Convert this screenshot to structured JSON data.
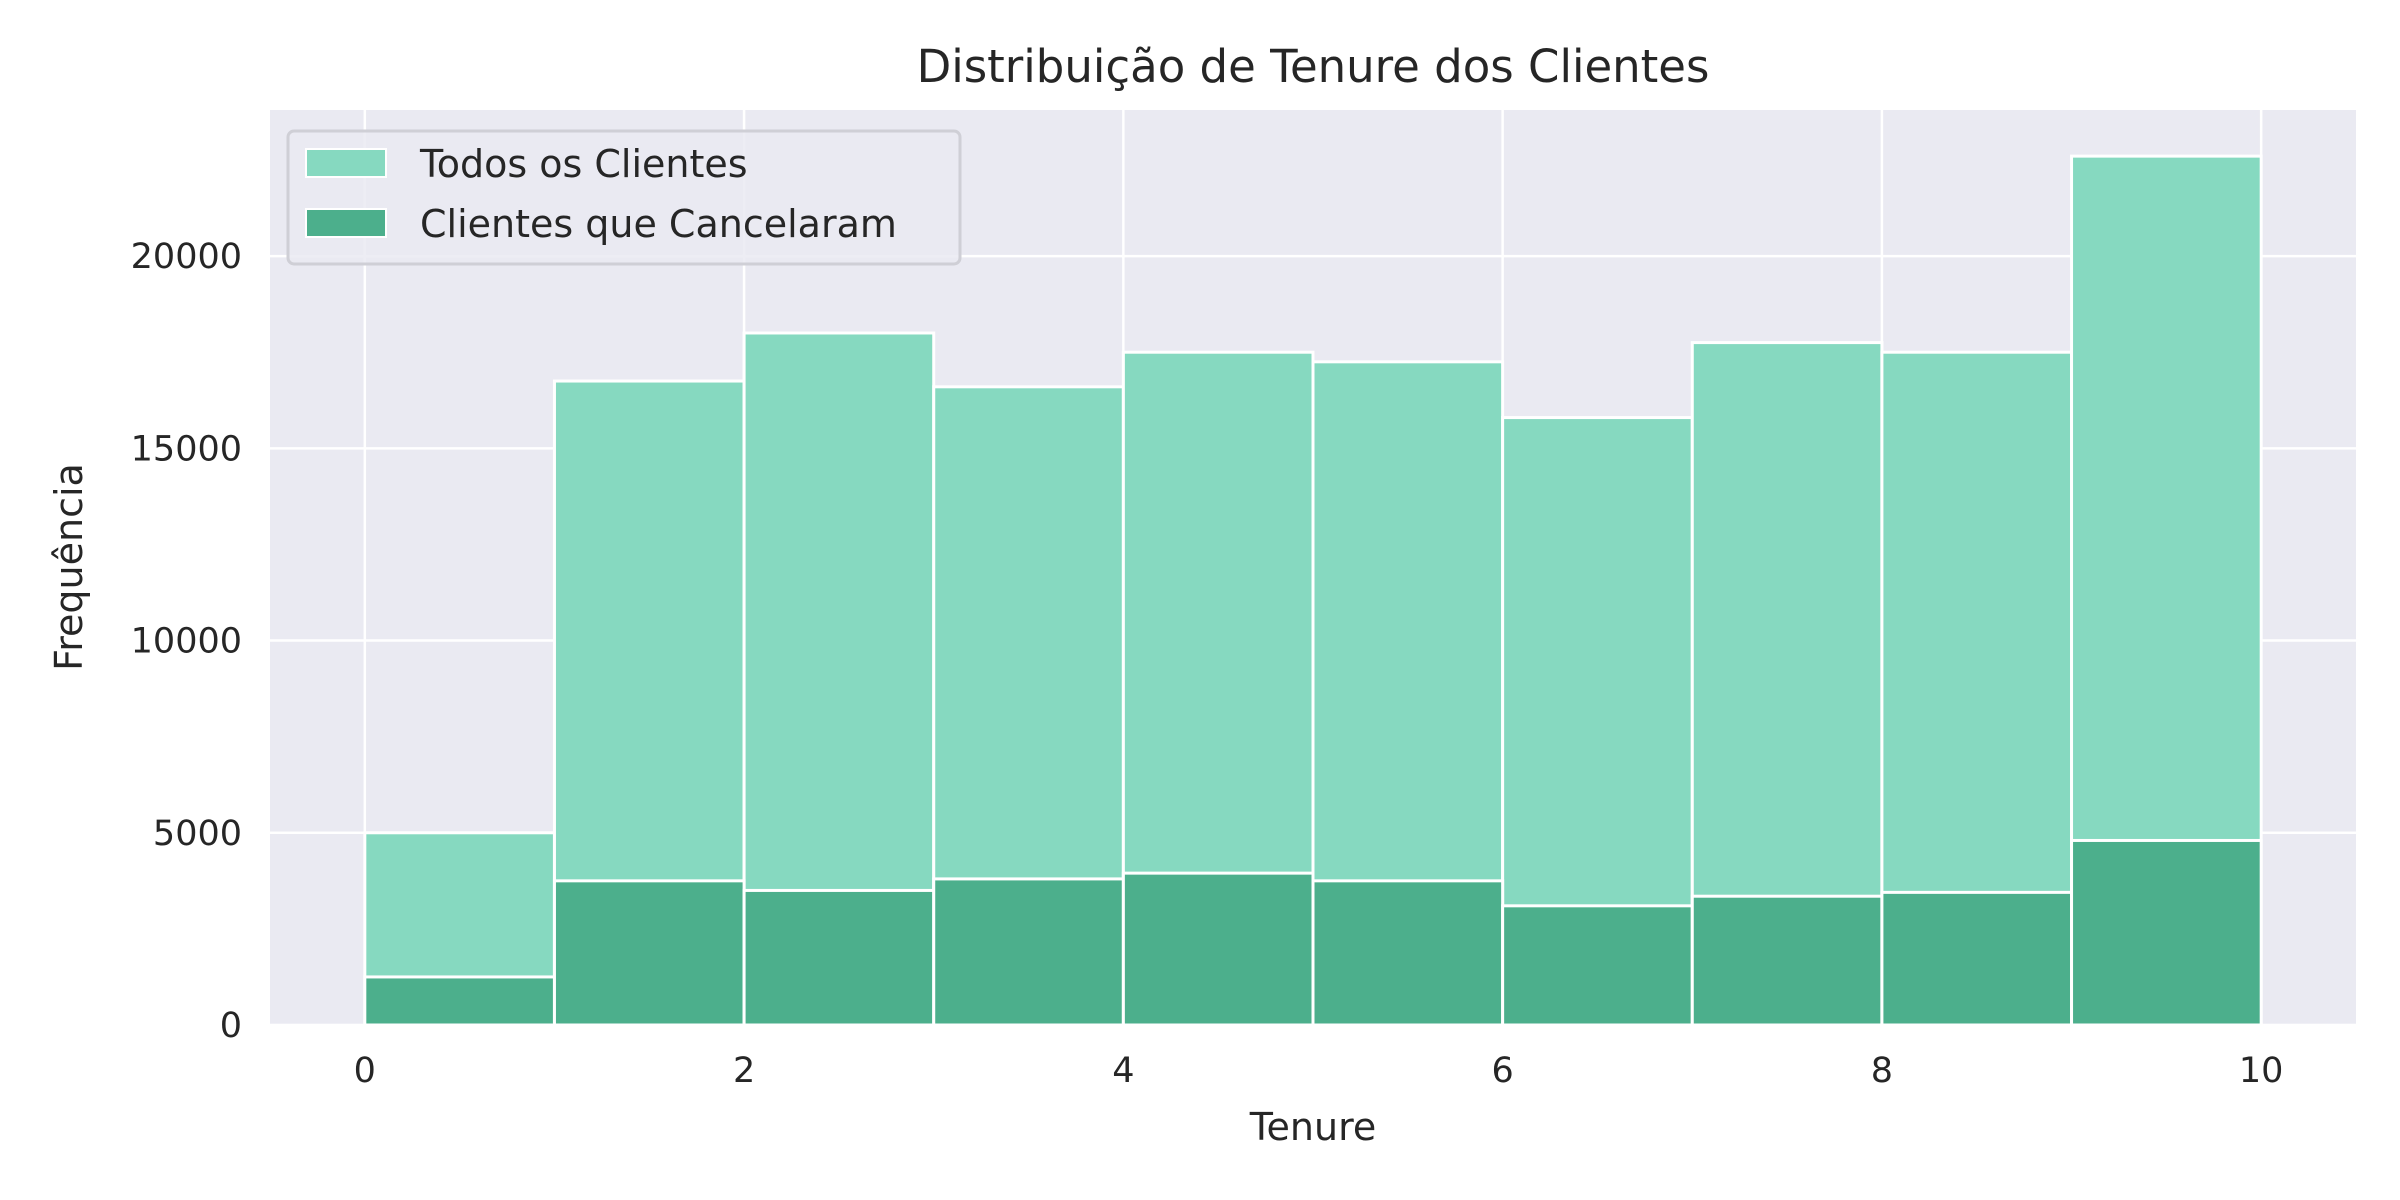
{
  "chart_data": {
    "type": "bar",
    "title": "Distribuição de Tenure dos Clientes",
    "xlabel": "Tenure",
    "ylabel": "Frequência",
    "xlim": [
      -0.5,
      10.5
    ],
    "ylim": [
      0,
      23800
    ],
    "x_ticks": [
      0,
      2,
      4,
      6,
      8,
      10
    ],
    "y_ticks": [
      0,
      5000,
      10000,
      15000,
      20000
    ],
    "grid": true,
    "legend_position": "top-left",
    "bin_edges": [
      0,
      1,
      2,
      3,
      4,
      5,
      6,
      7,
      8,
      9,
      10
    ],
    "series": [
      {
        "name": "Todos os Clientes",
        "color": "#66d1b0",
        "values": [
          5000,
          16750,
          18000,
          16600,
          17500,
          17250,
          15800,
          17750,
          17500,
          22600
        ]
      },
      {
        "name": "Clientes que Cancelaram",
        "color": "#3a9e75",
        "values": [
          1250,
          3750,
          3500,
          3800,
          3950,
          3750,
          3100,
          3350,
          3450,
          4800
        ]
      }
    ],
    "colors": {
      "background": "#eaeaf2",
      "grid": "#ffffff",
      "all_fill": "#86d9c0",
      "churn_fill": "#4caf8c",
      "bar_edge": "#ffffff"
    }
  }
}
